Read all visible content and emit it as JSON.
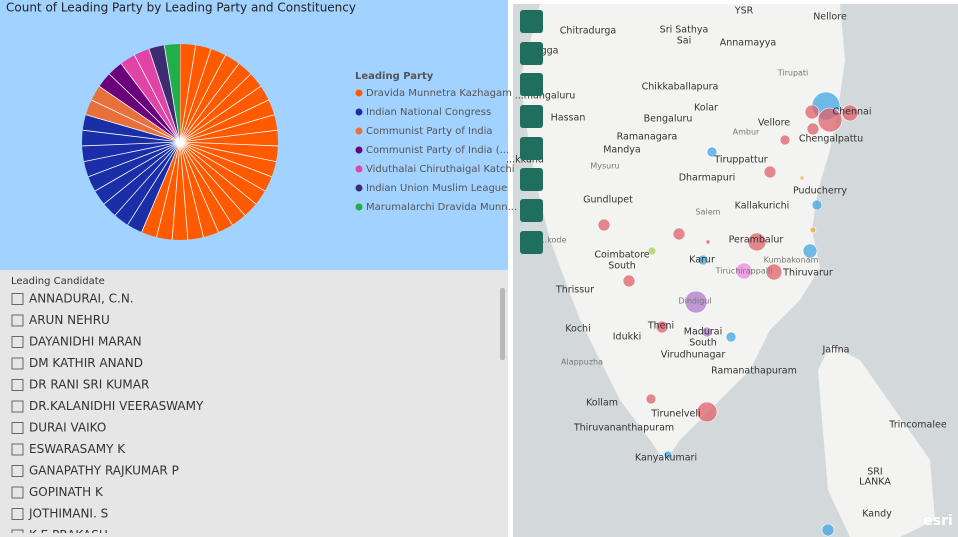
{
  "chart_data": {
    "type": "pie",
    "title": "Count of Leading Party by Leading Party and Constituency",
    "legend_title": "Leading Party",
    "categories": [
      "Dravida Munnetra Kazhagam",
      "Indian National Congress",
      "Communist Party of India",
      "Communist Party of India (...",
      "Viduthalai Chiruthaigal Katchi",
      "Indian Union Muslim League",
      "Marumalarchi Dravida Munn..."
    ],
    "values": [
      22,
      9,
      2,
      2,
      2,
      1,
      1
    ],
    "colors": [
      "#ff5a00",
      "#1a2ea8",
      "#e8703a",
      "#6b007b",
      "#e044a7",
      "#3d2c72",
      "#20b049"
    ],
    "legend": "right"
  },
  "slicer": {
    "title": "Leading Candidate",
    "items": [
      "ANNADURAI, C.N.",
      "ARUN NEHRU",
      "DAYANIDHI MARAN",
      "DM KATHIR ANAND",
      "DR RANI SRI KUMAR",
      "DR.KALANIDHI VEERASWAMY",
      "DURAI VAIKO",
      "ESWARASAMY K",
      "GANAPATHY RAJKUMAR P",
      "GOPINATH K",
      "JOTHIMANI. S",
      "K.E.PRAKASH"
    ]
  },
  "map": {
    "places": [
      "YSR",
      "Nellore",
      "Chitradurga",
      "Sri Sathya",
      "Sai",
      "Annamayya",
      "...gga",
      "Tirupati",
      "Chikkaballapura",
      "...mangaluru",
      "Kolar",
      "Chennai",
      "Hassan",
      "Bengaluru",
      "Vellore",
      "Ambur",
      "Ramanagara",
      "Chengalpattu",
      "Mandya",
      "...kkund",
      "Tiruppattur",
      "Mysuru",
      "Dharmapuri",
      "Puducherry",
      "Gundlupet",
      "Kallakurichi",
      "Salem",
      "...kode",
      "Perambalur",
      "Coimbatore",
      "South",
      "Karur",
      "Kumbakonam",
      "Tiruchirappalli",
      "Thiruvarur",
      "Thrissur",
      "Dindigul",
      "Kochi",
      "Theni",
      "Idukki",
      "Madurai",
      "South",
      "Jaffna",
      "Virudhunagar",
      "Alappuzha",
      "Ramanathapuram",
      "Kollam",
      "Tirunelveli",
      "Trincomalee",
      "Thiruvananthapuram",
      "Kanyakumari",
      "SRI",
      "LANKA",
      "Kandy"
    ],
    "logo": "esri"
  }
}
